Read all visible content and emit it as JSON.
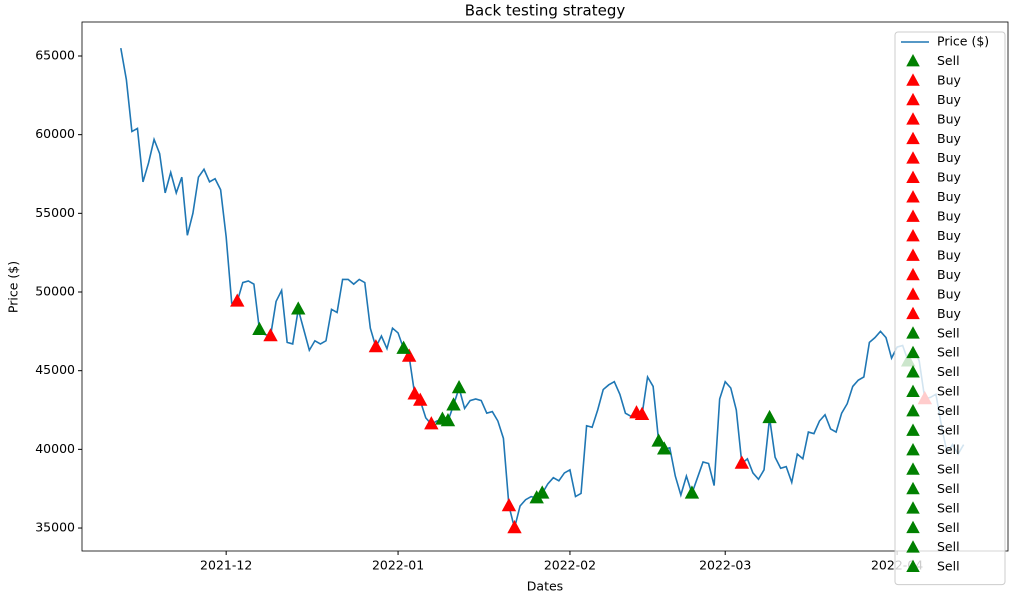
{
  "chart_data": {
    "type": "line",
    "title": "Back testing strategy",
    "x_label": "Dates",
    "y_label": "Price ($)",
    "xlim": [
      "2021-11-05",
      "2022-04-21"
    ],
    "xticks": [
      {
        "value": "2021-12-01",
        "label": "2021-12"
      },
      {
        "value": "2022-01-01",
        "label": "2022-01"
      },
      {
        "value": "2022-02-01",
        "label": "2022-02"
      },
      {
        "value": "2022-03-01",
        "label": "2022-03"
      },
      {
        "value": "2022-04-01",
        "label": "2022-04"
      }
    ],
    "ylim": [
      33540,
      67160
    ],
    "yticks": [
      35000,
      40000,
      45000,
      50000,
      55000,
      60000,
      65000
    ],
    "legend": "upper right",
    "x": [
      "2021-11-12",
      "2021-11-13",
      "2021-11-14",
      "2021-11-15",
      "2021-11-16",
      "2021-11-17",
      "2021-11-18",
      "2021-11-19",
      "2021-11-20",
      "2021-11-21",
      "2021-11-22",
      "2021-11-23",
      "2021-11-24",
      "2021-11-25",
      "2021-11-26",
      "2021-11-27",
      "2021-11-28",
      "2021-11-29",
      "2021-11-30",
      "2021-12-01",
      "2021-12-02",
      "2021-12-03",
      "2021-12-04",
      "2021-12-05",
      "2021-12-06",
      "2021-12-07",
      "2021-12-08",
      "2021-12-09",
      "2021-12-10",
      "2021-12-11",
      "2021-12-12",
      "2021-12-13",
      "2021-12-14",
      "2021-12-15",
      "2021-12-16",
      "2021-12-17",
      "2021-12-18",
      "2021-12-19",
      "2021-12-20",
      "2021-12-21",
      "2021-12-22",
      "2021-12-23",
      "2021-12-24",
      "2021-12-25",
      "2021-12-26",
      "2021-12-27",
      "2021-12-28",
      "2021-12-29",
      "2021-12-30",
      "2021-12-31",
      "2022-01-01",
      "2022-01-02",
      "2022-01-03",
      "2022-01-04",
      "2022-01-05",
      "2022-01-06",
      "2022-01-07",
      "2022-01-08",
      "2022-01-09",
      "2022-01-10",
      "2022-01-11",
      "2022-01-12",
      "2022-01-13",
      "2022-01-14",
      "2022-01-15",
      "2022-01-16",
      "2022-01-17",
      "2022-01-18",
      "2022-01-19",
      "2022-01-20",
      "2022-01-21",
      "2022-01-22",
      "2022-01-23",
      "2022-01-24",
      "2022-01-25",
      "2022-01-26",
      "2022-01-27",
      "2022-01-28",
      "2022-01-29",
      "2022-01-30",
      "2022-01-31",
      "2022-02-01",
      "2022-02-02",
      "2022-02-03",
      "2022-02-04",
      "2022-02-05",
      "2022-02-06",
      "2022-02-07",
      "2022-02-08",
      "2022-02-09",
      "2022-02-10",
      "2022-02-11",
      "2022-02-12",
      "2022-02-13",
      "2022-02-14",
      "2022-02-15",
      "2022-02-16",
      "2022-02-17",
      "2022-02-18",
      "2022-02-19",
      "2022-02-20",
      "2022-02-21",
      "2022-02-22",
      "2022-02-23",
      "2022-02-24",
      "2022-02-25",
      "2022-02-26",
      "2022-02-27",
      "2022-02-28",
      "2022-03-01",
      "2022-03-02",
      "2022-03-03",
      "2022-03-04",
      "2022-03-05",
      "2022-03-06",
      "2022-03-07",
      "2022-03-08",
      "2022-03-09",
      "2022-03-10",
      "2022-03-11",
      "2022-03-12",
      "2022-03-13",
      "2022-03-14",
      "2022-03-15",
      "2022-03-16",
      "2022-03-17",
      "2022-03-18",
      "2022-03-19",
      "2022-03-20",
      "2022-03-21",
      "2022-03-22",
      "2022-03-23",
      "2022-03-24",
      "2022-03-25",
      "2022-03-26",
      "2022-03-27",
      "2022-03-28",
      "2022-03-29",
      "2022-03-30",
      "2022-03-31",
      "2022-04-01",
      "2022-04-02",
      "2022-04-03",
      "2022-04-04",
      "2022-04-05",
      "2022-04-06",
      "2022-04-07",
      "2022-04-08",
      "2022-04-09",
      "2022-04-10",
      "2022-04-11",
      "2022-04-12",
      "2022-04-13"
    ],
    "series": [
      {
        "name": "Price ($)",
        "color": "#1f77b4",
        "values": [
          65500,
          63500,
          60200,
          60400,
          57000,
          58200,
          59700,
          58800,
          56300,
          57600,
          56300,
          57300,
          53600,
          55000,
          57300,
          57800,
          57000,
          57200,
          56500,
          53500,
          49300,
          49400,
          50600,
          50700,
          50500,
          47600,
          47300,
          47200,
          49400,
          50100,
          46800,
          46700,
          48900,
          47600,
          46300,
          46900,
          46700,
          46900,
          48900,
          48700,
          50800,
          50800,
          50500,
          50800,
          50600,
          47700,
          46500,
          47200,
          46400,
          47700,
          47400,
          46400,
          45900,
          43500,
          43100,
          42000,
          41600,
          41800,
          41900,
          41800,
          42800,
          43900,
          42600,
          43100,
          43200,
          43100,
          42300,
          42400,
          41800,
          40700,
          36400,
          35000,
          36400,
          36800,
          37000,
          36900,
          37200,
          37800,
          38200,
          38000,
          38500,
          38700,
          37000,
          37200,
          41500,
          41400,
          42500,
          43800,
          44100,
          44300,
          43500,
          42300,
          42100,
          42300,
          42200,
          44600,
          44000,
          40500,
          40000,
          40100,
          38300,
          37100,
          38300,
          37200,
          38200,
          39200,
          39100,
          37700,
          43200,
          44300,
          43900,
          42500,
          39100,
          39400,
          38500,
          38100,
          38700,
          42000,
          39500,
          38800,
          38900,
          37900,
          39700,
          39400,
          41100,
          41000,
          41800,
          42200,
          41300,
          41100,
          42300,
          42900,
          44000,
          44400,
          44600,
          46800,
          47100,
          47500,
          47100,
          45800,
          46500,
          46600,
          45600,
          46400,
          45600,
          43200,
          43300,
          43500,
          41500,
          39800,
          40300,
          39700,
          40300
        ]
      },
      {
        "name": "Sell",
        "color": "green",
        "marker": "triangle",
        "x": [
          "2021-12-07"
        ],
        "values": [
          47600
        ]
      },
      {
        "name": "Buy",
        "color": "red",
        "marker": "triangle",
        "x": [
          "2021-12-03"
        ],
        "values": [
          49400
        ]
      },
      {
        "name": "Buy",
        "color": "red",
        "marker": "triangle",
        "x": [
          "2021-12-09"
        ],
        "values": [
          47200
        ]
      },
      {
        "name": "Buy",
        "color": "red",
        "marker": "triangle",
        "x": [
          "2021-12-28"
        ],
        "values": [
          46500
        ]
      },
      {
        "name": "Buy",
        "color": "red",
        "marker": "triangle",
        "x": [
          "2022-01-03"
        ],
        "values": [
          45900
        ]
      },
      {
        "name": "Buy",
        "color": "red",
        "marker": "triangle",
        "x": [
          "2022-01-04"
        ],
        "values": [
          43500
        ]
      },
      {
        "name": "Buy",
        "color": "red",
        "marker": "triangle",
        "x": [
          "2022-01-05"
        ],
        "values": [
          43100
        ]
      },
      {
        "name": "Buy",
        "color": "red",
        "marker": "triangle",
        "x": [
          "2022-01-07"
        ],
        "values": [
          41600
        ]
      },
      {
        "name": "Buy",
        "color": "red",
        "marker": "triangle",
        "x": [
          "2022-01-21"
        ],
        "values": [
          36400
        ]
      },
      {
        "name": "Buy",
        "color": "red",
        "marker": "triangle",
        "x": [
          "2022-01-22"
        ],
        "values": [
          35000
        ]
      },
      {
        "name": "Buy",
        "color": "red",
        "marker": "triangle",
        "x": [
          "2022-02-13"
        ],
        "values": [
          42300
        ]
      },
      {
        "name": "Buy",
        "color": "red",
        "marker": "triangle",
        "x": [
          "2022-02-14"
        ],
        "values": [
          42200
        ]
      },
      {
        "name": "Buy",
        "color": "red",
        "marker": "triangle",
        "x": [
          "2022-03-04"
        ],
        "values": [
          39100
        ]
      },
      {
        "name": "Buy",
        "color": "red",
        "marker": "triangle",
        "x": [
          "2022-04-06"
        ],
        "values": [
          43200
        ]
      },
      {
        "name": "Sell",
        "color": "green",
        "marker": "triangle",
        "x": [
          "2021-12-14"
        ],
        "values": [
          48900
        ]
      },
      {
        "name": "Sell",
        "color": "green",
        "marker": "triangle",
        "x": [
          "2022-01-02"
        ],
        "values": [
          46400
        ]
      },
      {
        "name": "Sell",
        "color": "green",
        "marker": "triangle",
        "x": [
          "2022-01-09"
        ],
        "values": [
          41900
        ]
      },
      {
        "name": "Sell",
        "color": "green",
        "marker": "triangle",
        "x": [
          "2022-01-10"
        ],
        "values": [
          41800
        ]
      },
      {
        "name": "Sell",
        "color": "green",
        "marker": "triangle",
        "x": [
          "2022-01-11"
        ],
        "values": [
          42800
        ]
      },
      {
        "name": "Sell",
        "color": "green",
        "marker": "triangle",
        "x": [
          "2022-01-12"
        ],
        "values": [
          43900
        ]
      },
      {
        "name": "Sell",
        "color": "green",
        "marker": "triangle",
        "x": [
          "2022-01-26"
        ],
        "values": [
          36900
        ]
      },
      {
        "name": "Sell",
        "color": "green",
        "marker": "triangle",
        "x": [
          "2022-01-27"
        ],
        "values": [
          37200
        ]
      },
      {
        "name": "Sell",
        "color": "green",
        "marker": "triangle",
        "x": [
          "2022-02-17"
        ],
        "values": [
          40500
        ]
      },
      {
        "name": "Sell",
        "color": "green",
        "marker": "triangle",
        "x": [
          "2022-02-18"
        ],
        "values": [
          40000
        ]
      },
      {
        "name": "Sell",
        "color": "green",
        "marker": "triangle",
        "x": [
          "2022-02-23"
        ],
        "values": [
          37200
        ]
      },
      {
        "name": "Sell",
        "color": "green",
        "marker": "triangle",
        "x": [
          "2022-03-09"
        ],
        "values": [
          42000
        ]
      },
      {
        "name": "Sell",
        "color": "green",
        "marker": "triangle",
        "x": [
          "2022-04-03"
        ],
        "values": [
          45600
        ]
      }
    ]
  }
}
